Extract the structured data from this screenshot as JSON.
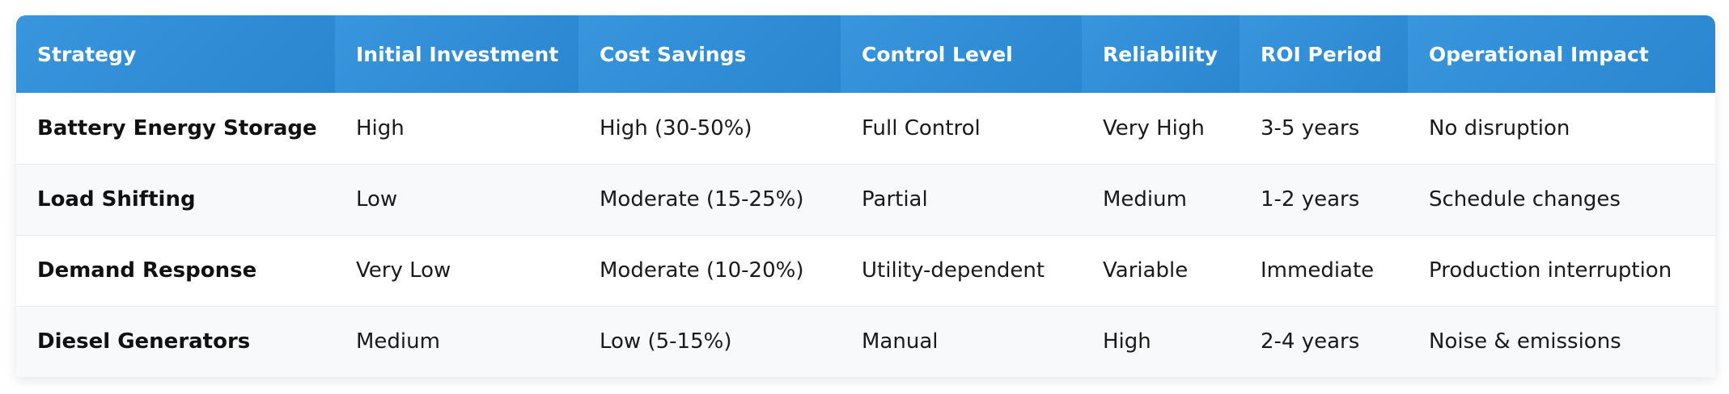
{
  "table": {
    "headers": [
      "Strategy",
      "Initial Investment",
      "Cost Savings",
      "Control Level",
      "Reliability",
      "ROI Period",
      "Operational Impact"
    ],
    "rows": [
      [
        "Battery Energy Storage",
        "High",
        "High (30-50%)",
        "Full Control",
        "Very High",
        "3-5 years",
        "No disruption"
      ],
      [
        "Load Shifting",
        "Low",
        "Moderate (15-25%)",
        "Partial",
        "Medium",
        "1-2 years",
        "Schedule changes"
      ],
      [
        "Demand Response",
        "Very Low",
        "Moderate (10-20%)",
        "Utility-dependent",
        "Variable",
        "Immediate",
        "Production interruption"
      ],
      [
        "Diesel Generators",
        "Medium",
        "Low (5-15%)",
        "Manual",
        "High",
        "2-4 years",
        "Noise & emissions"
      ]
    ]
  },
  "colors": {
    "header_bg": "#3090d8",
    "header_text": "#ffffff",
    "row_alt_bg": "#f8f9fa"
  }
}
